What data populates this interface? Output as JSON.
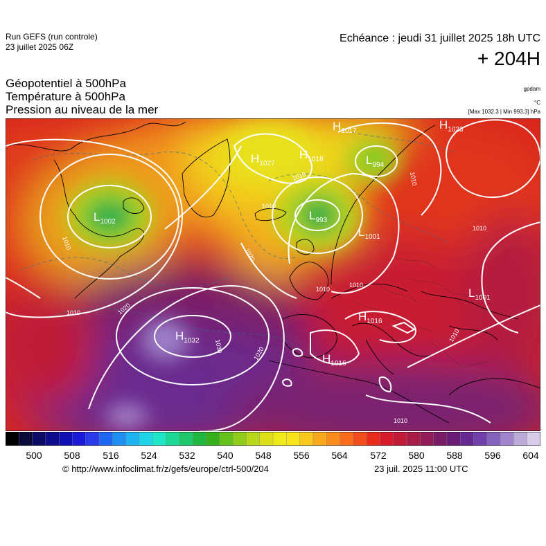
{
  "header": {
    "run_title": "Run GEFS (run controle)",
    "run_date": "23 juillet 2025 06Z",
    "forecast_time": "Echéance : jeudi 31 juillet 2025 18h UTC",
    "forecast_offset": "+ 204H"
  },
  "parameters": [
    "Géopotentiel à 500hPa",
    "Température à 500hPa",
    "Pression au niveau de la mer"
  ],
  "units": {
    "geopotential": "gpdam",
    "temperature": "°C",
    "pressure": "[Max 1032.3 | Min 993.3] hPa"
  },
  "pressure_centers": [
    {
      "type": "H",
      "value": "1017"
    },
    {
      "type": "H",
      "value": "1023"
    },
    {
      "type": "H",
      "value": "1027"
    },
    {
      "type": "H",
      "value": "1018"
    },
    {
      "type": "L",
      "value": "994"
    },
    {
      "type": "L",
      "value": "1002"
    },
    {
      "type": "L",
      "value": "993"
    },
    {
      "type": "L",
      "value": "1001"
    },
    {
      "type": "L",
      "value": "1001"
    },
    {
      "type": "H",
      "value": "1016"
    },
    {
      "type": "H",
      "value": "1032"
    },
    {
      "type": "H",
      "value": "1016"
    }
  ],
  "isobar_labels": [
    "1010",
    "1010",
    "1010",
    "1010",
    "1010",
    "1020",
    "1020",
    "1020",
    "1030",
    "1010",
    "1010",
    "1010",
    "1010",
    "1010"
  ],
  "colorbar": {
    "ticks": [
      "500",
      "508",
      "516",
      "524",
      "532",
      "540",
      "548",
      "556",
      "564",
      "572",
      "580",
      "588",
      "596",
      "604"
    ],
    "colors": [
      "#000000",
      "#0a0a3a",
      "#0c0c66",
      "#0d0d8c",
      "#1010b4",
      "#1a1ad6",
      "#2a3ae8",
      "#1f66f2",
      "#1f8ef0",
      "#1fb4ef",
      "#1fd4e6",
      "#1fe6c6",
      "#1fd896",
      "#1fc86a",
      "#20b840",
      "#38b01c",
      "#66c01c",
      "#90cc1c",
      "#b8d81c",
      "#dce01c",
      "#f0ea1c",
      "#f8e41c",
      "#f8c81c",
      "#f8aa1c",
      "#f88c1c",
      "#f86c1c",
      "#f04c1c",
      "#e82c1c",
      "#d61c2c",
      "#c01c3a",
      "#a81c48",
      "#901c58",
      "#781c68",
      "#681c74",
      "#642890",
      "#7040a8",
      "#8462bc",
      "#a084cc",
      "#bcaad8",
      "#d6ccea"
    ]
  },
  "footer": {
    "source_url": "© http://www.infoclimat.fr/z/gefs/europe/ctrl-500/204",
    "issued_time": "23 juil. 2025 11:00 UTC"
  }
}
